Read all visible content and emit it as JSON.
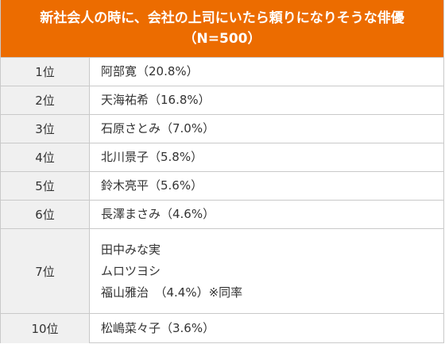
{
  "header": {
    "title_line1": "新社会人の時に、会社の上司にいたら頼りになりそうな俳優",
    "title_line2": "（N=500）"
  },
  "rows": [
    {
      "rank": "1位",
      "lines": [
        "阿部寛（20.8%）"
      ]
    },
    {
      "rank": "2位",
      "lines": [
        "天海祐希（16.8%）"
      ]
    },
    {
      "rank": "3位",
      "lines": [
        "石原さとみ（7.0%）"
      ]
    },
    {
      "rank": "4位",
      "lines": [
        "北川景子（5.8%）"
      ]
    },
    {
      "rank": "5位",
      "lines": [
        "鈴木亮平（5.6%）"
      ]
    },
    {
      "rank": "6位",
      "lines": [
        "長澤まさみ（4.6%）"
      ]
    },
    {
      "rank": "7位",
      "lines": [
        "田中みな実",
        "ムロツヨシ",
        "福山雅治　（4.4%）※同率"
      ]
    },
    {
      "rank": "10位",
      "lines": [
        "松嶋菜々子（3.6%）"
      ]
    }
  ]
}
